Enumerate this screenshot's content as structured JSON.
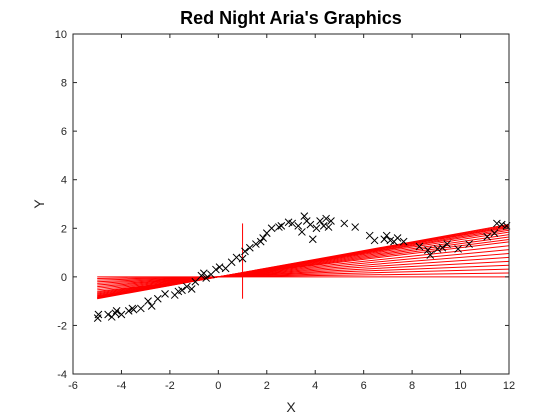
{
  "chart_data": {
    "type": "scatter",
    "title": "Red Night Aria's Graphics",
    "xlabel": "X",
    "ylabel": "Y",
    "xlim": [
      -6,
      12
    ],
    "ylim": [
      -4,
      10
    ],
    "xticks": [
      -6,
      -4,
      -2,
      0,
      2,
      4,
      6,
      8,
      10,
      12
    ],
    "yticks": [
      -4,
      -2,
      0,
      2,
      4,
      6,
      8,
      10
    ],
    "grid": false,
    "legend": "none",
    "colors": {
      "points": "#000000",
      "lines": "#ff0000",
      "axes": "#262626"
    },
    "scatter": {
      "marker": "x",
      "x": [
        -4.98,
        -4.95,
        -4.55,
        -4.4,
        -4.25,
        -4.2,
        -4.0,
        -3.7,
        -3.55,
        -3.5,
        -3.2,
        -2.9,
        -2.75,
        -2.5,
        -2.2,
        -1.8,
        -1.65,
        -1.5,
        -1.3,
        -1.1,
        -0.95,
        -0.7,
        -0.6,
        -0.5,
        -0.3,
        -0.1,
        0.05,
        0.3,
        0.55,
        0.75,
        1.0,
        1.1,
        1.3,
        1.55,
        1.75,
        1.85,
        2.0,
        2.2,
        2.5,
        2.6,
        2.9,
        3.05,
        3.3,
        3.45,
        3.55,
        3.65,
        3.8,
        3.9,
        4.05,
        4.2,
        4.35,
        4.45,
        4.55,
        4.65,
        5.2,
        5.65,
        6.25,
        6.45,
        6.85,
        6.95,
        7.1,
        7.25,
        7.4,
        7.65,
        8.3,
        8.65,
        8.75,
        9.05,
        9.25,
        9.45,
        9.9,
        10.35,
        11.1,
        11.4,
        11.5,
        11.7,
        11.9
      ],
      "y": [
        -1.7,
        -1.55,
        -1.55,
        -1.65,
        -1.5,
        -1.4,
        -1.55,
        -1.4,
        -1.3,
        -1.35,
        -1.3,
        -1.0,
        -1.2,
        -0.9,
        -0.7,
        -0.75,
        -0.6,
        -0.55,
        -0.4,
        -0.5,
        -0.2,
        0.05,
        0.15,
        -0.05,
        0.1,
        0.3,
        0.4,
        0.35,
        0.6,
        0.8,
        0.75,
        1.05,
        1.2,
        1.35,
        1.45,
        1.6,
        1.8,
        2.0,
        2.05,
        2.1,
        2.25,
        2.2,
        2.1,
        1.85,
        2.5,
        2.3,
        2.15,
        1.55,
        2.0,
        2.3,
        2.1,
        2.4,
        2.05,
        2.3,
        2.2,
        2.05,
        1.7,
        1.5,
        1.55,
        1.7,
        1.5,
        1.45,
        1.6,
        1.45,
        1.25,
        1.1,
        0.9,
        1.15,
        1.2,
        1.35,
        1.15,
        1.35,
        1.65,
        1.8,
        2.2,
        2.15,
        2.1
      ]
    },
    "lines": {
      "x_start": -5,
      "x_end": 12,
      "intercept": 0,
      "slopes": [
        0.0,
        0.0133,
        0.0267,
        0.04,
        0.0533,
        0.0667,
        0.08,
        0.0933,
        0.1067,
        0.12,
        0.1283,
        0.1367,
        0.145,
        0.1533,
        0.16,
        0.165,
        0.17,
        0.1733,
        0.1767,
        0.18
      ]
    },
    "vertical_segment": {
      "x": 1,
      "y_range": [
        -0.9,
        2.2
      ]
    }
  }
}
